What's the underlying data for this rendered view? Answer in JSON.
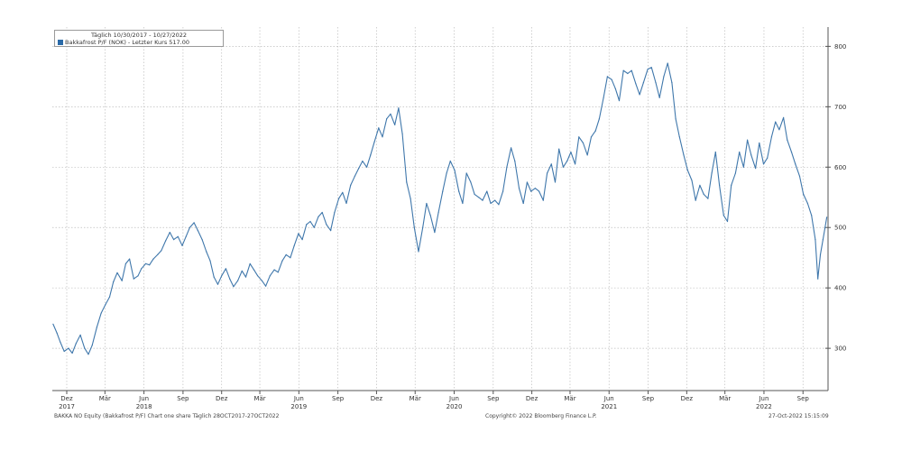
{
  "legend": {
    "title": "Täglich 10/30/2017 - 10/27/2022",
    "series": "Bakkafrost P/F (NOK) - Letzter Kurs 517.00"
  },
  "footer": {
    "left": "BAKKA NO Equity (Bakkafrost P/F) Chart one share  Täglich 28OCT2017-27OCT2022",
    "center": "Copyright© 2022 Bloomberg Finance L.P.",
    "right": "27-Oct-2022 15:15:09"
  },
  "colors": {
    "line": "#3f77ab",
    "grid": "#bdbdbd",
    "axis": "#555555"
  },
  "chart_data": {
    "type": "line",
    "ylim": [
      230,
      820
    ],
    "yticks": [
      300,
      400,
      500,
      600,
      700,
      800
    ],
    "xticks": [
      {
        "date": "2017-12-01",
        "label": "Dez",
        "year": "2017"
      },
      {
        "date": "2018-03-01",
        "label": "Mär",
        "year": ""
      },
      {
        "date": "2018-06-01",
        "label": "Jun",
        "year": "2018"
      },
      {
        "date": "2018-09-01",
        "label": "Sep",
        "year": ""
      },
      {
        "date": "2018-12-01",
        "label": "Dez",
        "year": ""
      },
      {
        "date": "2019-03-01",
        "label": "Mär",
        "year": ""
      },
      {
        "date": "2019-06-01",
        "label": "Jun",
        "year": "2019"
      },
      {
        "date": "2019-09-01",
        "label": "Sep",
        "year": ""
      },
      {
        "date": "2019-12-01",
        "label": "Dez",
        "year": ""
      },
      {
        "date": "2020-03-01",
        "label": "Mär",
        "year": ""
      },
      {
        "date": "2020-06-01",
        "label": "Jun",
        "year": "2020"
      },
      {
        "date": "2020-09-01",
        "label": "Sep",
        "year": ""
      },
      {
        "date": "2020-12-01",
        "label": "Dez",
        "year": ""
      },
      {
        "date": "2021-03-01",
        "label": "Mär",
        "year": ""
      },
      {
        "date": "2021-06-01",
        "label": "Jun",
        "year": "2021"
      },
      {
        "date": "2021-09-01",
        "label": "Sep",
        "year": ""
      },
      {
        "date": "2021-12-01",
        "label": "Dez",
        "year": ""
      },
      {
        "date": "2022-03-01",
        "label": "Mär",
        "year": ""
      },
      {
        "date": "2022-06-01",
        "label": "Jun",
        "year": "2022"
      },
      {
        "date": "2022-09-01",
        "label": "Sep",
        "year": ""
      }
    ],
    "xrange": [
      "2017-10-28",
      "2022-10-30"
    ],
    "series": [
      {
        "name": "Bakkafrost P/F (NOK) - Letzter Kurs 517.00",
        "points": [
          [
            "2017-10-30",
            340
          ],
          [
            "2017-11-08",
            325
          ],
          [
            "2017-11-16",
            310
          ],
          [
            "2017-11-25",
            295
          ],
          [
            "2017-12-05",
            300
          ],
          [
            "2017-12-14",
            292
          ],
          [
            "2017-12-23",
            308
          ],
          [
            "2018-01-02",
            322
          ],
          [
            "2018-01-12",
            300
          ],
          [
            "2018-01-21",
            290
          ],
          [
            "2018-01-30",
            305
          ],
          [
            "2018-02-10",
            335
          ],
          [
            "2018-02-20",
            358
          ],
          [
            "2018-03-02",
            372
          ],
          [
            "2018-03-12",
            385
          ],
          [
            "2018-03-21",
            410
          ],
          [
            "2018-03-30",
            425
          ],
          [
            "2018-04-10",
            412
          ],
          [
            "2018-04-19",
            440
          ],
          [
            "2018-04-28",
            448
          ],
          [
            "2018-05-08",
            415
          ],
          [
            "2018-05-18",
            420
          ],
          [
            "2018-05-26",
            432
          ],
          [
            "2018-06-05",
            440
          ],
          [
            "2018-06-14",
            438
          ],
          [
            "2018-06-23",
            448
          ],
          [
            "2018-07-03",
            455
          ],
          [
            "2018-07-12",
            462
          ],
          [
            "2018-07-22",
            478
          ],
          [
            "2018-08-01",
            492
          ],
          [
            "2018-08-10",
            480
          ],
          [
            "2018-08-20",
            485
          ],
          [
            "2018-08-30",
            470
          ],
          [
            "2018-09-08",
            485
          ],
          [
            "2018-09-17",
            500
          ],
          [
            "2018-09-27",
            508
          ],
          [
            "2018-10-06",
            495
          ],
          [
            "2018-10-16",
            480
          ],
          [
            "2018-10-26",
            460
          ],
          [
            "2018-11-04",
            445
          ],
          [
            "2018-11-13",
            418
          ],
          [
            "2018-11-22",
            406
          ],
          [
            "2018-12-01",
            420
          ],
          [
            "2018-12-11",
            432
          ],
          [
            "2018-12-20",
            415
          ],
          [
            "2018-12-29",
            402
          ],
          [
            "2019-01-08",
            412
          ],
          [
            "2019-01-18",
            428
          ],
          [
            "2019-01-27",
            418
          ],
          [
            "2019-02-06",
            440
          ],
          [
            "2019-02-15",
            430
          ],
          [
            "2019-02-24",
            420
          ],
          [
            "2019-03-06",
            412
          ],
          [
            "2019-03-15",
            403
          ],
          [
            "2019-03-25",
            420
          ],
          [
            "2019-04-04",
            430
          ],
          [
            "2019-04-13",
            426
          ],
          [
            "2019-04-23",
            445
          ],
          [
            "2019-05-02",
            455
          ],
          [
            "2019-05-12",
            450
          ],
          [
            "2019-05-21",
            470
          ],
          [
            "2019-05-31",
            490
          ],
          [
            "2019-06-09",
            480
          ],
          [
            "2019-06-19",
            505
          ],
          [
            "2019-06-28",
            510
          ],
          [
            "2019-07-07",
            500
          ],
          [
            "2019-07-17",
            518
          ],
          [
            "2019-07-26",
            525
          ],
          [
            "2019-08-05",
            505
          ],
          [
            "2019-08-15",
            495
          ],
          [
            "2019-08-24",
            525
          ],
          [
            "2019-09-03",
            548
          ],
          [
            "2019-09-12",
            558
          ],
          [
            "2019-09-21",
            540
          ],
          [
            "2019-10-01",
            570
          ],
          [
            "2019-10-11",
            585
          ],
          [
            "2019-10-20",
            598
          ],
          [
            "2019-10-29",
            610
          ],
          [
            "2019-11-08",
            600
          ],
          [
            "2019-11-17",
            620
          ],
          [
            "2019-11-26",
            642
          ],
          [
            "2019-12-06",
            665
          ],
          [
            "2019-12-15",
            650
          ],
          [
            "2019-12-25",
            680
          ],
          [
            "2020-01-03",
            688
          ],
          [
            "2020-01-13",
            670
          ],
          [
            "2020-01-22",
            698
          ],
          [
            "2020-01-31",
            655
          ],
          [
            "2020-02-10",
            575
          ],
          [
            "2020-02-19",
            548
          ],
          [
            "2020-02-28",
            500
          ],
          [
            "2020-03-09",
            460
          ],
          [
            "2020-03-19",
            500
          ],
          [
            "2020-03-28",
            540
          ],
          [
            "2020-04-06",
            520
          ],
          [
            "2020-04-16",
            492
          ],
          [
            "2020-04-25",
            525
          ],
          [
            "2020-05-05",
            560
          ],
          [
            "2020-05-14",
            590
          ],
          [
            "2020-05-23",
            610
          ],
          [
            "2020-06-02",
            595
          ],
          [
            "2020-06-12",
            560
          ],
          [
            "2020-06-21",
            540
          ],
          [
            "2020-06-30",
            590
          ],
          [
            "2020-07-10",
            575
          ],
          [
            "2020-07-19",
            555
          ],
          [
            "2020-07-29",
            550
          ],
          [
            "2020-08-07",
            545
          ],
          [
            "2020-08-17",
            560
          ],
          [
            "2020-08-26",
            540
          ],
          [
            "2020-09-05",
            545
          ],
          [
            "2020-09-14",
            538
          ],
          [
            "2020-09-24",
            560
          ],
          [
            "2020-10-03",
            600
          ],
          [
            "2020-10-13",
            632
          ],
          [
            "2020-10-22",
            610
          ],
          [
            "2020-11-01",
            565
          ],
          [
            "2020-11-11",
            540
          ],
          [
            "2020-11-20",
            575
          ],
          [
            "2020-11-29",
            560
          ],
          [
            "2020-12-09",
            565
          ],
          [
            "2020-12-18",
            560
          ],
          [
            "2020-12-28",
            545
          ],
          [
            "2021-01-06",
            590
          ],
          [
            "2021-01-16",
            605
          ],
          [
            "2021-01-25",
            575
          ],
          [
            "2021-02-03",
            630
          ],
          [
            "2021-02-13",
            600
          ],
          [
            "2021-02-22",
            610
          ],
          [
            "2021-03-03",
            625
          ],
          [
            "2021-03-13",
            605
          ],
          [
            "2021-03-22",
            650
          ],
          [
            "2021-04-01",
            640
          ],
          [
            "2021-04-11",
            620
          ],
          [
            "2021-04-20",
            650
          ],
          [
            "2021-04-30",
            660
          ],
          [
            "2021-05-09",
            680
          ],
          [
            "2021-05-19",
            715
          ],
          [
            "2021-05-28",
            750
          ],
          [
            "2021-06-07",
            745
          ],
          [
            "2021-06-16",
            730
          ],
          [
            "2021-06-25",
            710
          ],
          [
            "2021-07-05",
            760
          ],
          [
            "2021-07-15",
            755
          ],
          [
            "2021-07-24",
            760
          ],
          [
            "2021-08-03",
            738
          ],
          [
            "2021-08-12",
            720
          ],
          [
            "2021-08-21",
            740
          ],
          [
            "2021-08-31",
            762
          ],
          [
            "2021-09-09",
            765
          ],
          [
            "2021-09-19",
            740
          ],
          [
            "2021-09-28",
            715
          ],
          [
            "2021-10-08",
            750
          ],
          [
            "2021-10-17",
            772
          ],
          [
            "2021-10-27",
            740
          ],
          [
            "2021-11-05",
            680
          ],
          [
            "2021-11-14",
            650
          ],
          [
            "2021-11-24",
            620
          ],
          [
            "2021-12-03",
            595
          ],
          [
            "2021-12-13",
            578
          ],
          [
            "2021-12-22",
            545
          ],
          [
            "2022-01-01",
            570
          ],
          [
            "2022-01-10",
            555
          ],
          [
            "2022-01-20",
            548
          ],
          [
            "2022-01-29",
            590
          ],
          [
            "2022-02-07",
            625
          ],
          [
            "2022-02-16",
            570
          ],
          [
            "2022-02-26",
            520
          ],
          [
            "2022-03-07",
            510
          ],
          [
            "2022-03-16",
            570
          ],
          [
            "2022-03-26",
            590
          ],
          [
            "2022-04-04",
            625
          ],
          [
            "2022-04-14",
            600
          ],
          [
            "2022-04-23",
            645
          ],
          [
            "2022-05-02",
            620
          ],
          [
            "2022-05-12",
            598
          ],
          [
            "2022-05-21",
            640
          ],
          [
            "2022-05-31",
            605
          ],
          [
            "2022-06-09",
            615
          ],
          [
            "2022-06-19",
            650
          ],
          [
            "2022-06-28",
            675
          ],
          [
            "2022-07-07",
            662
          ],
          [
            "2022-07-17",
            682
          ],
          [
            "2022-07-26",
            645
          ],
          [
            "2022-08-05",
            625
          ],
          [
            "2022-08-14",
            605
          ],
          [
            "2022-08-24",
            585
          ],
          [
            "2022-09-02",
            555
          ],
          [
            "2022-09-12",
            540
          ],
          [
            "2022-09-21",
            520
          ],
          [
            "2022-09-30",
            480
          ],
          [
            "2022-10-06",
            415
          ],
          [
            "2022-10-12",
            455
          ],
          [
            "2022-10-18",
            480
          ],
          [
            "2022-10-23",
            500
          ],
          [
            "2022-10-27",
            517
          ]
        ]
      }
    ]
  }
}
